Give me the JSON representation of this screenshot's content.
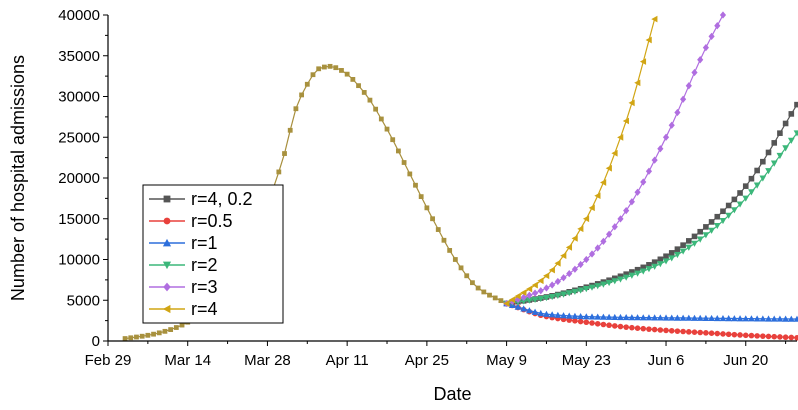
{
  "chart_data": {
    "type": "line",
    "title": "",
    "xlabel": "Date",
    "ylabel": "Number of hospital admissions",
    "x_ticks": [
      "Feb 29",
      "Mar 14",
      "Mar 28",
      "Apr 11",
      "Apr 25",
      "May 9",
      "May 23",
      "Jun 6",
      "Jun 20"
    ],
    "y_ticks": [
      "0",
      "5000",
      "10000",
      "15000",
      "20000",
      "25000",
      "30000",
      "35000",
      "40000"
    ],
    "ylim": [
      0,
      40000
    ],
    "xlim": [
      "Feb 29",
      "Jun 29"
    ],
    "grid": false,
    "legend_position": "left",
    "series": [
      {
        "name": "r=4, 0.2",
        "color": "#555555",
        "marker": "square",
        "x": [
          "May 9",
          "May 16",
          "May 23",
          "May 30",
          "Jun 6",
          "Jun 13",
          "Jun 20",
          "Jun 29"
        ],
        "y": [
          4600,
          5400,
          6600,
          8200,
          10400,
          14000,
          19000,
          29000
        ]
      },
      {
        "name": "r=0.5",
        "color": "#e8413c",
        "marker": "circle",
        "x": [
          "May 9",
          "May 16",
          "May 23",
          "May 30",
          "Jun 6",
          "Jun 13",
          "Jun 20",
          "Jun 29"
        ],
        "y": [
          4600,
          3000,
          2300,
          1700,
          1300,
          1000,
          700,
          400
        ]
      },
      {
        "name": "r=1",
        "color": "#2d6fdc",
        "marker": "triangle-up",
        "x": [
          "May 9",
          "May 16",
          "May 23",
          "May 30",
          "Jun 6",
          "Jun 13",
          "Jun 20",
          "Jun 29"
        ],
        "y": [
          4600,
          3300,
          3000,
          2900,
          2850,
          2800,
          2750,
          2700
        ]
      },
      {
        "name": "r=2",
        "color": "#3cb77a",
        "marker": "triangle-down",
        "x": [
          "May 9",
          "May 16",
          "May 23",
          "May 30",
          "Jun 6",
          "Jun 13",
          "Jun 20",
          "Jun 29"
        ],
        "y": [
          4600,
          5300,
          6400,
          7800,
          9800,
          13000,
          17500,
          25500
        ]
      },
      {
        "name": "r=3",
        "color": "#b06ee0",
        "marker": "diamond",
        "x": [
          "May 9",
          "May 16",
          "May 23",
          "May 30",
          "Jun 6",
          "Jun 13",
          "Jun 16"
        ],
        "y": [
          4600,
          6500,
          10000,
          16000,
          25000,
          36000,
          40000
        ]
      },
      {
        "name": "r=4",
        "color": "#d1a514",
        "marker": "triangle-left",
        "x": [
          "May 9",
          "May 16",
          "May 23",
          "May 30",
          "Jun 4"
        ],
        "y": [
          4600,
          8000,
          15000,
          27000,
          39500
        ]
      }
    ],
    "shared_curve": {
      "x": [
        "Mar 3",
        "Mar 7",
        "Mar 11",
        "Mar 15",
        "Mar 19",
        "Mar 23",
        "Mar 27",
        "Mar 31",
        "Apr 2",
        "Apr 4",
        "Apr 6",
        "Apr 8",
        "Apr 10",
        "Apr 14",
        "Apr 18",
        "Apr 22",
        "Apr 26",
        "Apr 30",
        "May 4",
        "May 9"
      ],
      "y": [
        300,
        700,
        1400,
        2700,
        5000,
        9000,
        15000,
        23000,
        28500,
        31500,
        33400,
        33700,
        33200,
        30500,
        26000,
        20500,
        15000,
        10000,
        6500,
        4600
      ]
    }
  }
}
